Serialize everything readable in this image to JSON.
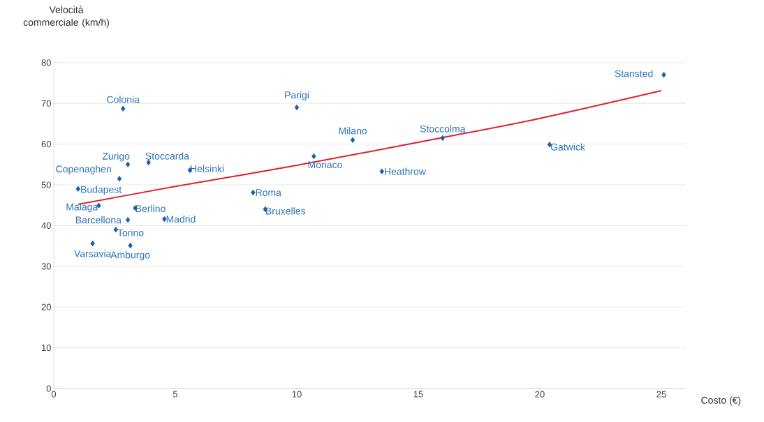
{
  "chart_data": {
    "type": "scatter",
    "ylabel": "Velocità commerciale (km/h)",
    "xlabel": "Costo (€)",
    "xlim": [
      0,
      26
    ],
    "xticks": [
      0,
      5,
      10,
      15,
      20,
      25
    ],
    "ylim": [
      0,
      80
    ],
    "yticks": [
      0,
      10,
      20,
      30,
      40,
      50,
      60,
      70,
      80
    ],
    "grid": "y",
    "marker": "diamond",
    "series": [
      {
        "color": "#1f5fa0",
        "x": [
          25.1,
          2.85,
          10.0,
          12.3,
          16.0,
          20.4,
          3.05,
          3.9,
          5.6,
          10.7,
          13.5,
          2.7,
          1.0,
          8.2,
          8.7,
          1.85,
          3.35,
          3.05,
          4.55,
          2.55,
          1.6,
          3.15
        ],
        "values": [
          77.0,
          68.7,
          69.0,
          61.0,
          61.5,
          59.9,
          55.0,
          55.5,
          53.6,
          57.0,
          53.3,
          51.5,
          49.0,
          48.1,
          44.0,
          44.9,
          44.3,
          41.4,
          41.6,
          39.0,
          35.6,
          35.1
        ]
      },
      {
        "type": "line",
        "marker": "none",
        "color": "#e02030",
        "x": [
          1,
          5,
          10,
          16,
          20,
          25
        ],
        "values": [
          45.2,
          49.6,
          54.8,
          61.6,
          66.3,
          73.1
        ]
      }
    ],
    "annotations": [
      {
        "text": "Stansted",
        "x": 25.1,
        "y": 77.0
      },
      {
        "text": "Colonia",
        "x": 2.85,
        "y": 68.7
      },
      {
        "text": "Parigi",
        "x": 10.0,
        "y": 69.0
      },
      {
        "text": "Milano",
        "x": 12.3,
        "y": 61.0
      },
      {
        "text": "Stoccolma",
        "x": 16.0,
        "y": 61.5
      },
      {
        "text": "Gatwick",
        "x": 20.4,
        "y": 59.9
      },
      {
        "text": "Zurigo",
        "x": 3.05,
        "y": 55.0
      },
      {
        "text": "Stoccarda",
        "x": 3.9,
        "y": 55.5
      },
      {
        "text": "Helsinki",
        "x": 5.6,
        "y": 53.6
      },
      {
        "text": "Monaco",
        "x": 10.7,
        "y": 57.0
      },
      {
        "text": "Heathrow",
        "x": 13.5,
        "y": 53.3
      },
      {
        "text": "Copenaghen",
        "x": 2.7,
        "y": 51.5
      },
      {
        "text": "Budapest",
        "x": 1.0,
        "y": 49.0
      },
      {
        "text": "Roma",
        "x": 8.2,
        "y": 48.1
      },
      {
        "text": "Bruxelles",
        "x": 8.7,
        "y": 44.0
      },
      {
        "text": "Malaga",
        "x": 1.85,
        "y": 44.9
      },
      {
        "text": "Berlino",
        "x": 3.35,
        "y": 44.3
      },
      {
        "text": "Barcellona",
        "x": 3.05,
        "y": 41.4
      },
      {
        "text": "Madrid",
        "x": 4.55,
        "y": 41.6
      },
      {
        "text": "Torino",
        "x": 2.55,
        "y": 39.0
      },
      {
        "text": "Varsavia",
        "x": 1.6,
        "y": 35.6
      },
      {
        "text": "Amburgo",
        "x": 3.15,
        "y": 35.1
      }
    ]
  }
}
